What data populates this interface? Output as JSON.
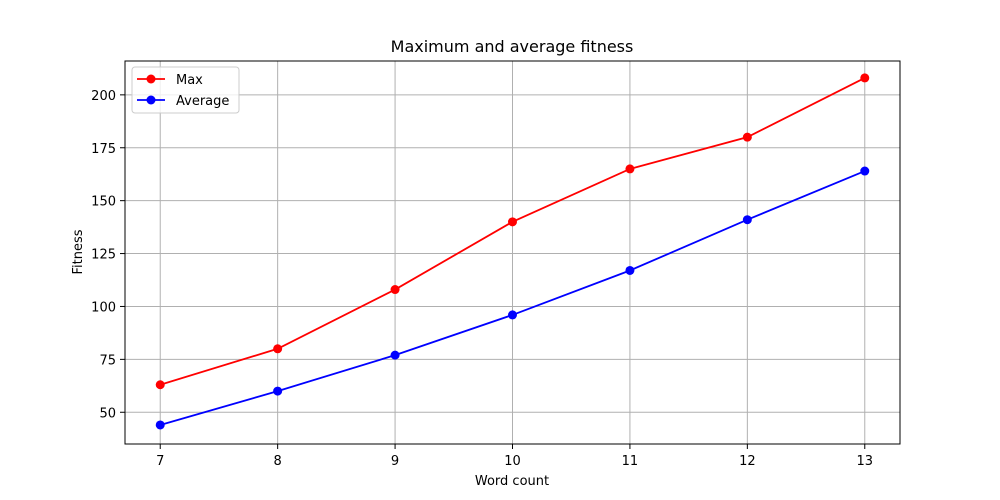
{
  "chart_data": {
    "type": "line",
    "title": "Maximum and average fitness",
    "xlabel": "Word count",
    "ylabel": "Fitness",
    "x": [
      7,
      8,
      9,
      10,
      11,
      12,
      13
    ],
    "xlim": [
      6.7,
      13.3
    ],
    "ylim": [
      35,
      216
    ],
    "xticks": [
      7,
      8,
      9,
      10,
      11,
      12,
      13
    ],
    "yticks": [
      50,
      75,
      100,
      125,
      150,
      175,
      200
    ],
    "grid": true,
    "legend_position": "top-left",
    "series": [
      {
        "name": "Max",
        "color": "#ff0000",
        "marker": "circle",
        "values": [
          63,
          80,
          108,
          140,
          165,
          180,
          208
        ]
      },
      {
        "name": "Average",
        "color": "#0000ff",
        "marker": "circle",
        "values": [
          44,
          60,
          77,
          96,
          117,
          141,
          164
        ]
      }
    ]
  }
}
